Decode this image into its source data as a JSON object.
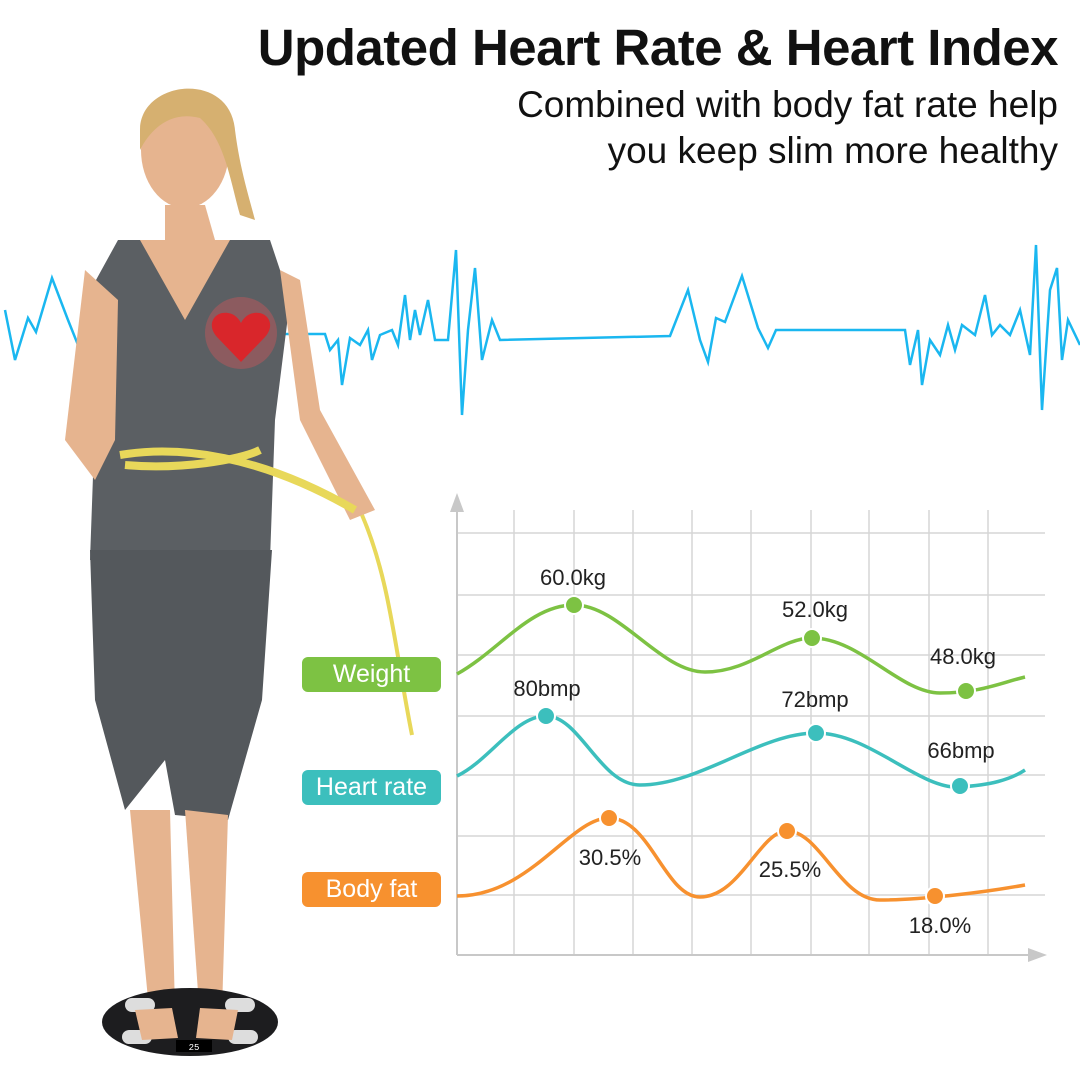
{
  "header": {
    "title": "Updated Heart Rate & Heart Index",
    "subtitle_line1": "Combined with body fat rate help",
    "subtitle_line2": "you keep slim more healthy"
  },
  "colors": {
    "ecg": "#1ab7f0",
    "weight": "#7dc243",
    "heart_rate": "#3cbfbd",
    "body_fat": "#f7912f",
    "heart": "#d9262b"
  },
  "icons": [
    "heart-icon",
    "ecg-waveform",
    "body-scale"
  ],
  "scale_display": "25",
  "chart_data": {
    "type": "line",
    "title": "",
    "xlabel": "",
    "ylabel": "",
    "grid": true,
    "series": [
      {
        "name": "Weight",
        "points": [
          {
            "value": 60.0,
            "label": "60.0kg"
          },
          {
            "value": 52.0,
            "label": "52.0kg"
          },
          {
            "value": 48.0,
            "label": "48.0kg"
          }
        ]
      },
      {
        "name": "Heart rate",
        "points": [
          {
            "value": 80,
            "label": "80bmp"
          },
          {
            "value": 72,
            "label": "72bmp"
          },
          {
            "value": 66,
            "label": "66bmp"
          }
        ]
      },
      {
        "name": "Body fat",
        "points": [
          {
            "value": 30.5,
            "label": "30.5%"
          },
          {
            "value": 25.5,
            "label": "25.5%"
          },
          {
            "value": 18.0,
            "label": "18.0%"
          }
        ]
      }
    ]
  }
}
